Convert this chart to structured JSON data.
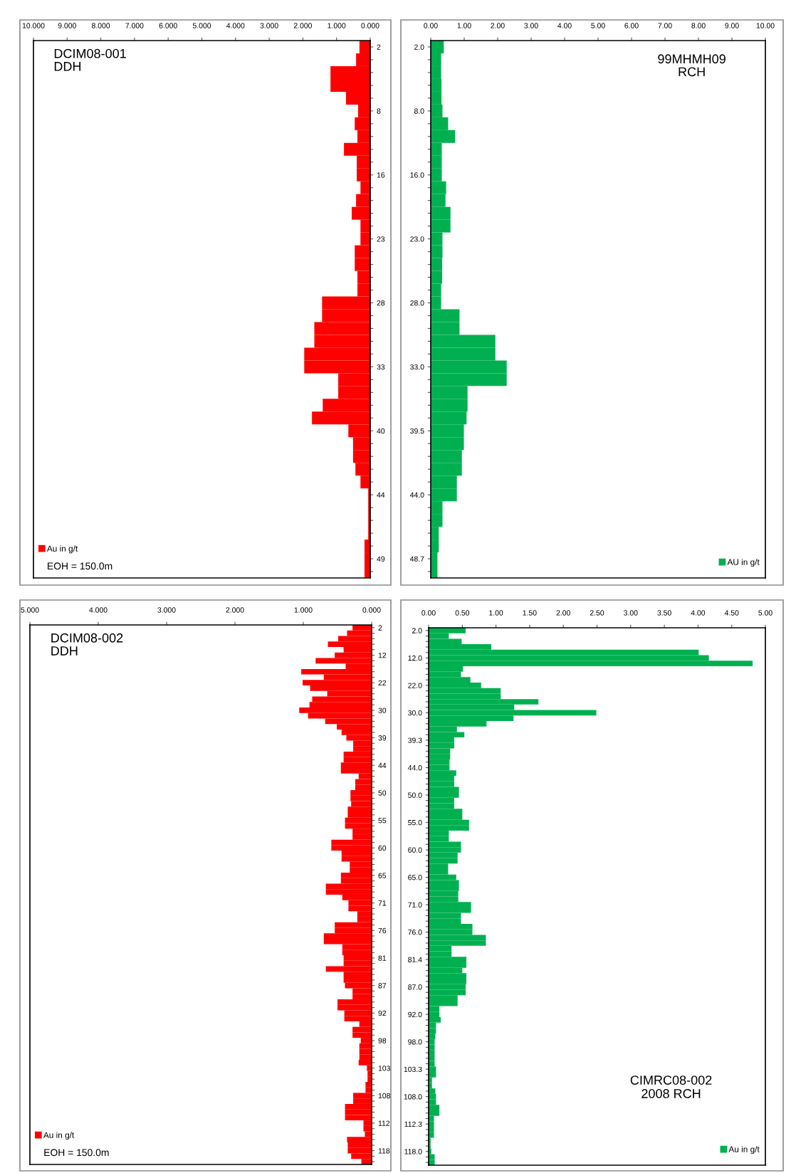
{
  "chart_data": [
    {
      "type": "bar",
      "orientation": "horizontal",
      "title": "DCIM08-001",
      "subtitle": "DDH",
      "categories": [
        "2",
        null,
        null,
        null,
        null,
        "8",
        null,
        null,
        null,
        null,
        "16",
        null,
        null,
        null,
        null,
        "23",
        null,
        null,
        null,
        null,
        "28",
        null,
        null,
        null,
        null,
        "33",
        null,
        null,
        null,
        null,
        "40",
        null,
        null,
        null,
        null,
        "44",
        null,
        null,
        null,
        null,
        "49",
        null
      ],
      "series": [
        {
          "name": "Au in g/t",
          "color": "#ff0000",
          "values": [
            0.32,
            0.42,
            1.18,
            1.18,
            0.72,
            0.36,
            0.46,
            0.38,
            0.78,
            0.4,
            0.4,
            0.29,
            0.42,
            0.55,
            0.29,
            0.29,
            0.46,
            0.46,
            0.38,
            0.38,
            1.43,
            1.43,
            1.66,
            1.66,
            1.96,
            1.96,
            0.95,
            0.95,
            1.41,
            1.73,
            0.65,
            0.51,
            0.51,
            0.44,
            0.29,
            0.06,
            0.06,
            0.06,
            0.06,
            0.17,
            0.17,
            0.17
          ]
        }
      ],
      "xlim": [
        10,
        0
      ],
      "xticks": [
        {
          "value": 10,
          "label": "10.000"
        },
        {
          "value": 9,
          "label": "9.000"
        },
        {
          "value": 8,
          "label": "8.000"
        },
        {
          "value": 7,
          "label": "7.000"
        },
        {
          "value": 6,
          "label": "6.000"
        },
        {
          "value": 5,
          "label": "5.000"
        },
        {
          "value": 4,
          "label": "4.000"
        },
        {
          "value": 3,
          "label": "3.000"
        },
        {
          "value": 2,
          "label": "2.000"
        },
        {
          "value": 1,
          "label": "1.000"
        },
        {
          "value": 0,
          "label": "0.000"
        }
      ],
      "legend": "bottom left",
      "annotations": [
        "EOH = 150.0m"
      ]
    },
    {
      "type": "bar",
      "orientation": "horizontal",
      "title": "99MHMH09",
      "subtitle": "RCH",
      "categories": [
        "2.0",
        null,
        null,
        null,
        null,
        "8.0",
        null,
        null,
        null,
        null,
        "16.0",
        null,
        null,
        null,
        null,
        "23.0",
        null,
        null,
        null,
        null,
        "28.0",
        null,
        null,
        null,
        null,
        "33.0",
        null,
        null,
        null,
        null,
        "39.5",
        null,
        null,
        null,
        null,
        "44.0",
        null,
        null,
        null,
        null,
        "48.7",
        null
      ],
      "series": [
        {
          "name": "AU in g/t",
          "color": "#00b050",
          "values": [
            0.39,
            0.31,
            0.31,
            0.32,
            0.32,
            0.35,
            0.52,
            0.73,
            0.33,
            0.33,
            0.33,
            0.46,
            0.44,
            0.59,
            0.59,
            0.35,
            0.35,
            0.34,
            0.34,
            0.31,
            0.31,
            0.86,
            0.86,
            1.93,
            1.93,
            2.27,
            2.27,
            1.1,
            1.1,
            1.07,
            0.99,
            0.99,
            0.93,
            0.93,
            0.78,
            0.78,
            0.35,
            0.35,
            0.24,
            0.24,
            0.2,
            0.2
          ]
        }
      ],
      "xlim": [
        0,
        10
      ],
      "xticks": [
        {
          "value": 0,
          "label": "0.00"
        },
        {
          "value": 1,
          "label": "1.00"
        },
        {
          "value": 2,
          "label": "2.00"
        },
        {
          "value": 3,
          "label": "3.00"
        },
        {
          "value": 4,
          "label": "4.00"
        },
        {
          "value": 5,
          "label": "5.00"
        },
        {
          "value": 6,
          "label": "6.00"
        },
        {
          "value": 7,
          "label": "7.00"
        },
        {
          "value": 8,
          "label": "8.00"
        },
        {
          "value": 9,
          "label": "9.00"
        },
        {
          "value": 10,
          "label": "10.00"
        }
      ],
      "legend": "bottom right"
    },
    {
      "type": "bar",
      "orientation": "horizontal",
      "title": "DCIM08-002",
      "subtitle": "DDH",
      "categories": [
        "2",
        null,
        null,
        null,
        null,
        "12",
        null,
        null,
        null,
        null,
        "22",
        null,
        null,
        null,
        null,
        "30",
        null,
        null,
        null,
        null,
        "39",
        null,
        null,
        null,
        null,
        "44",
        null,
        null,
        null,
        null,
        "50",
        null,
        null,
        null,
        null,
        "55",
        null,
        null,
        null,
        null,
        "60",
        null,
        null,
        null,
        null,
        "65",
        null,
        null,
        null,
        null,
        "71",
        null,
        null,
        null,
        null,
        "76",
        null,
        null,
        null,
        null,
        "81",
        null,
        null,
        null,
        null,
        "87",
        null,
        null,
        null,
        null,
        "92",
        null,
        null,
        null,
        null,
        "98",
        null,
        null,
        null,
        null,
        "103",
        null,
        null,
        null,
        null,
        "108",
        null,
        null,
        null,
        null,
        "112",
        null,
        null,
        null,
        null,
        "118",
        null,
        null
      ],
      "series": [
        {
          "name": "Au in g/t",
          "color": "#ff0000",
          "values": [
            0.28,
            0.36,
            0.49,
            0.64,
            0.41,
            0.54,
            0.82,
            0.38,
            1.03,
            0.7,
            1.01,
            0.9,
            0.65,
            0.87,
            0.91,
            1.06,
            0.93,
            0.68,
            0.51,
            0.44,
            0.37,
            0.27,
            0.27,
            0.41,
            0.41,
            0.45,
            0.45,
            0.19,
            0.24,
            0.24,
            0.31,
            0.31,
            0.3,
            0.35,
            0.35,
            0.39,
            0.39,
            0.28,
            0.28,
            0.59,
            0.59,
            0.44,
            0.44,
            0.32,
            0.32,
            0.45,
            0.45,
            0.67,
            0.67,
            0.43,
            0.34,
            0.34,
            0.21,
            0.21,
            0.54,
            0.54,
            0.7,
            0.7,
            0.43,
            0.43,
            0.41,
            0.41,
            0.67,
            0.41,
            0.41,
            0.39,
            0.28,
            0.28,
            0.5,
            0.5,
            0.4,
            0.4,
            0.18,
            0.28,
            0.28,
            0.16,
            0.18,
            0.18,
            0.18,
            0.19,
            0.07,
            0.06,
            0.06,
            0.09,
            0.09,
            0.27,
            0.27,
            0.39,
            0.39,
            0.39,
            0.12,
            0.12,
            0.1,
            0.36,
            0.35,
            0.35,
            0.3,
            0.15
          ]
        }
      ],
      "xlim": [
        5,
        0
      ],
      "xticks": [
        {
          "value": 5,
          "label": "5.000"
        },
        {
          "value": 4,
          "label": "4.000"
        },
        {
          "value": 3,
          "label": "3.000"
        },
        {
          "value": 2,
          "label": "2.000"
        },
        {
          "value": 1,
          "label": "1.000"
        },
        {
          "value": 0,
          "label": "0.000"
        }
      ],
      "legend": "bottom left",
      "annotations": [
        "EOH = 150.0m"
      ]
    },
    {
      "type": "bar",
      "orientation": "horizontal",
      "title": "CIMRC08-002",
      "subtitle": "2008 RCH",
      "categories": [
        "2.0",
        null,
        null,
        null,
        null,
        "12.0",
        null,
        null,
        null,
        null,
        "22.0",
        null,
        null,
        null,
        null,
        "30.0",
        null,
        null,
        null,
        null,
        "39.3",
        null,
        null,
        null,
        null,
        "44.0",
        null,
        null,
        null,
        null,
        "50.0",
        null,
        null,
        null,
        null,
        "55.0",
        null,
        null,
        null,
        null,
        "60.0",
        null,
        null,
        null,
        null,
        "65.0",
        null,
        null,
        null,
        null,
        "71.0",
        null,
        null,
        null,
        null,
        "76.0",
        null,
        null,
        null,
        null,
        "81.4",
        null,
        null,
        null,
        null,
        "87.0",
        null,
        null,
        null,
        null,
        "92.0",
        null,
        null,
        null,
        null,
        "98.0",
        null,
        null,
        null,
        null,
        "103.3",
        null,
        null,
        null,
        null,
        "108.0",
        null,
        null,
        null,
        null,
        "112.3",
        null,
        null,
        null,
        null,
        "118.0",
        null,
        null
      ],
      "series": [
        {
          "name": "Au in g/t",
          "color": "#00b050",
          "values": [
            0.55,
            0.3,
            0.49,
            0.93,
            4.01,
            4.16,
            4.81,
            0.51,
            0.48,
            0.62,
            0.78,
            1.07,
            1.07,
            1.63,
            1.27,
            2.49,
            1.26,
            0.86,
            0.42,
            0.53,
            0.38,
            0.38,
            0.32,
            0.32,
            0.31,
            0.31,
            0.41,
            0.38,
            0.38,
            0.45,
            0.45,
            0.38,
            0.38,
            0.5,
            0.5,
            0.6,
            0.6,
            0.3,
            0.3,
            0.48,
            0.48,
            0.43,
            0.43,
            0.29,
            0.29,
            0.41,
            0.45,
            0.45,
            0.44,
            0.44,
            0.63,
            0.63,
            0.48,
            0.48,
            0.65,
            0.65,
            0.85,
            0.85,
            0.34,
            0.34,
            0.56,
            0.56,
            0.5,
            0.56,
            0.56,
            0.55,
            0.55,
            0.43,
            0.43,
            0.16,
            0.16,
            0.18,
            0.11,
            0.11,
            0.1,
            0.09,
            0.09,
            0.09,
            0.09,
            0.09,
            0.11,
            0.11,
            0.05,
            0.05,
            0.1,
            0.11,
            0.11,
            0.16,
            0.16,
            0.08,
            0.08,
            0.08,
            0.08,
            0.03,
            0.03,
            0.04,
            0.09,
            0.09
          ]
        }
      ],
      "xlim": [
        0,
        5
      ],
      "xticks": [
        {
          "value": 0,
          "label": "0.00"
        },
        {
          "value": 0.5,
          "label": "0.50"
        },
        {
          "value": 1,
          "label": "1.00"
        },
        {
          "value": 1.5,
          "label": "1.50"
        },
        {
          "value": 2,
          "label": "2.00"
        },
        {
          "value": 2.5,
          "label": "2.50"
        },
        {
          "value": 3,
          "label": "3.00"
        },
        {
          "value": 3.5,
          "label": "3.50"
        },
        {
          "value": 4,
          "label": "4.00"
        },
        {
          "value": 4.5,
          "label": "4.50"
        },
        {
          "value": 5,
          "label": "5.00"
        }
      ],
      "legend": "bottom right"
    }
  ]
}
